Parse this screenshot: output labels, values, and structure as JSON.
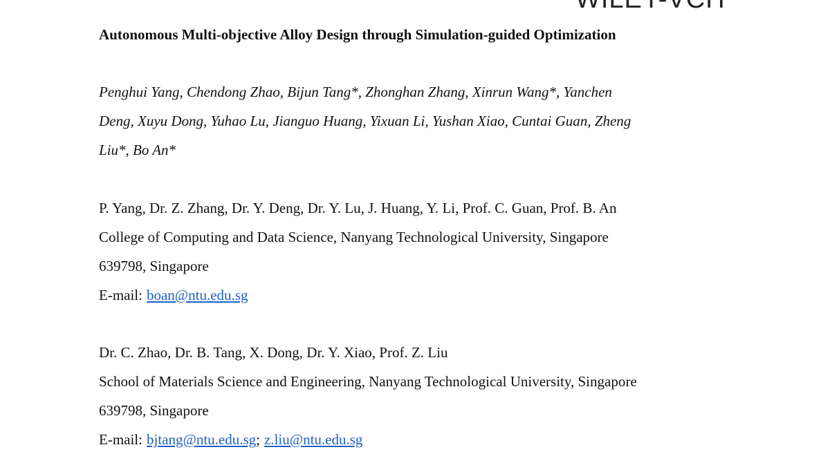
{
  "header": {
    "logo": "WILEY-VCH"
  },
  "title": "Autonomous Multi-objective Alloy Design through Simulation-guided Optimization",
  "authors": {
    "lines": [
      "Penghui Yang, Chendong Zhao, Bijun Tang*, Zhonghan Zhang, Xinrun Wang*, Yanchen",
      "Deng, Xuyu Dong, Yuhao Lu, Jianguo Huang, Yixuan Li, Yushan Xiao, Cuntai Guan, Zheng",
      "Liu*, Bo An*"
    ]
  },
  "affiliations": [
    {
      "lines": [
        "P. Yang, Dr. Z. Zhang, Dr. Y. Deng, Dr. Y. Lu, J. Huang, Y. Li, Prof. C. Guan, Prof. B. An",
        "College of Computing and Data Science, Nanyang Technological University, Singapore",
        "639798, Singapore"
      ],
      "email_parts": [
        {
          "text": "E-mail:"
        },
        {
          "link": "boan@ntu.edu.sg"
        }
      ]
    },
    {
      "lines": [
        "Dr. C. Zhao, Dr. B. Tang, X. Dong, Dr. Y. Xiao, Prof. Z. Liu",
        "School of Materials Science and Engineering, Nanyang Technological University, Singapore",
        "639798, Singapore"
      ],
      "email_parts": [
        {
          "text": "E-mail:"
        },
        {
          "link": "bjtang@ntu.edu.sg"
        },
        {
          "text": ";"
        },
        {
          "link": "z.liu@ntu.edu.sg"
        }
      ]
    }
  ]
}
